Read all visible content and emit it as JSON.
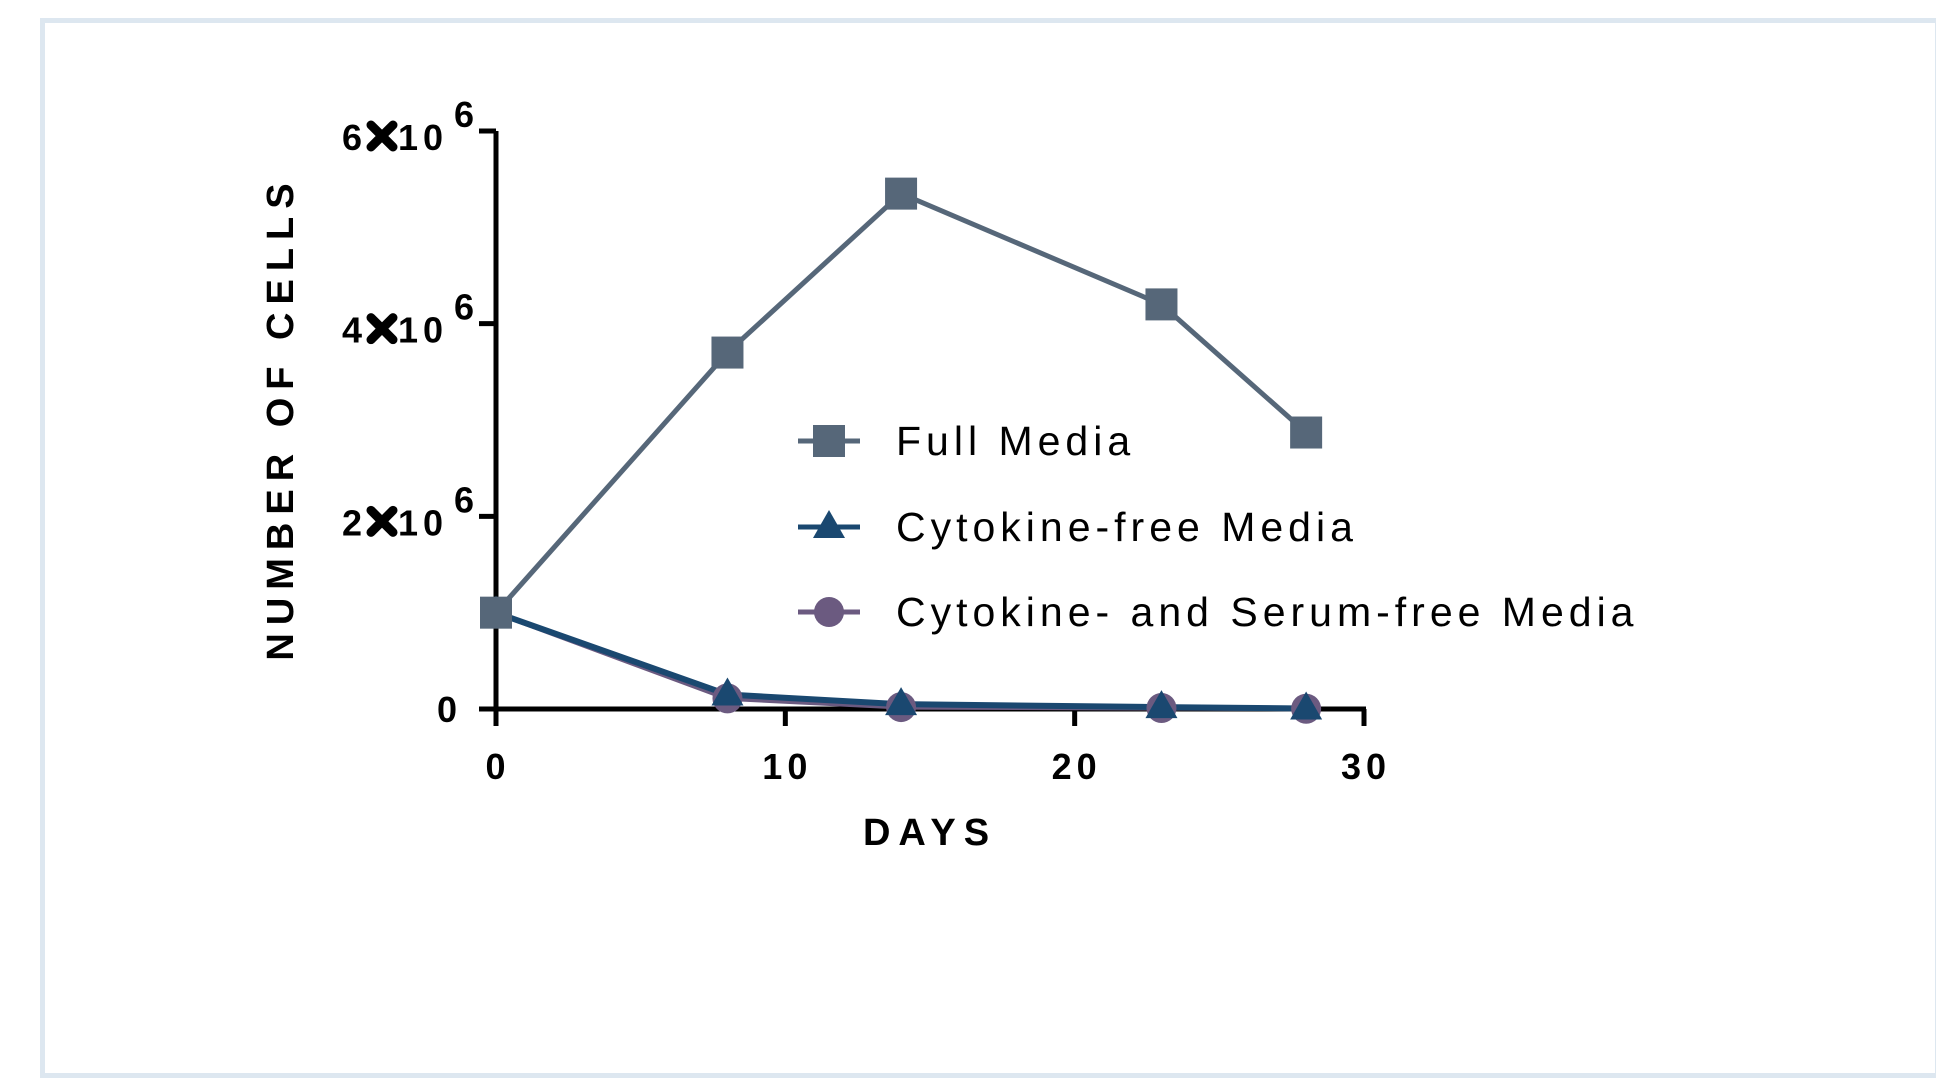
{
  "chart_data": {
    "type": "line",
    "xlabel": "DAYS",
    "ylabel": "NUMBER OF CELLS",
    "xlim": [
      0,
      30
    ],
    "ylim": [
      0,
      6000000
    ],
    "x_ticks": [
      {
        "value": 0,
        "label": "0"
      },
      {
        "value": 10,
        "label": "10"
      },
      {
        "value": 20,
        "label": "20"
      },
      {
        "value": 30,
        "label": "30"
      }
    ],
    "y_ticks": [
      {
        "value": 0,
        "mantissa": "0",
        "exponent": ""
      },
      {
        "value": 2000000,
        "mantissa": "2",
        "exponent": "6"
      },
      {
        "value": 4000000,
        "mantissa": "4",
        "exponent": "6"
      },
      {
        "value": 6000000,
        "mantissa": "6",
        "exponent": "6"
      }
    ],
    "y_tick_base": "10",
    "grid": false,
    "legend_position": "center-right",
    "series": [
      {
        "name": "Full Media",
        "marker": "square",
        "color": "#566779",
        "x": [
          0,
          8,
          14,
          23,
          28
        ],
        "y": [
          1000000,
          3700000,
          5350000,
          4200000,
          2870000
        ]
      },
      {
        "name": "Cytokine-free Media",
        "marker": "triangle",
        "color": "#1a4870",
        "x": [
          0,
          8,
          14,
          23,
          28
        ],
        "y": [
          1000000,
          150000,
          50000,
          20000,
          5000
        ]
      },
      {
        "name": "Cytokine- and Serum-free Media",
        "marker": "circle",
        "color": "#6b5a80",
        "x": [
          0,
          8,
          14,
          23,
          28
        ],
        "y": [
          1000000,
          110000,
          20000,
          10000,
          3000
        ]
      }
    ]
  }
}
